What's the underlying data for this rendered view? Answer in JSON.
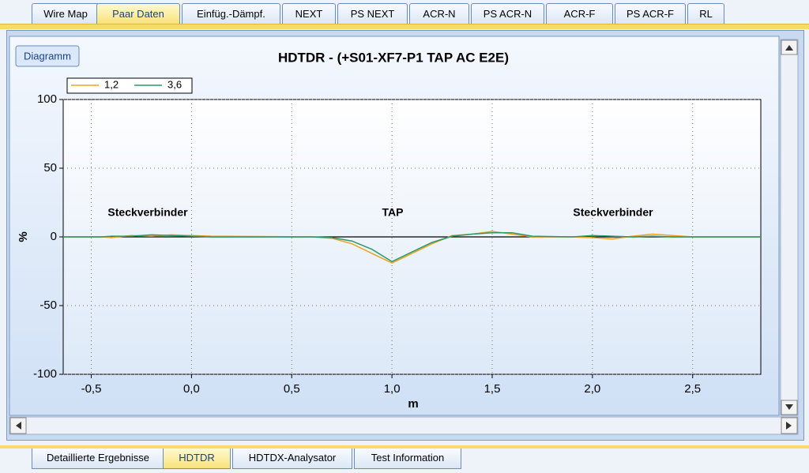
{
  "top_tabs": [
    "Wire Map",
    "Paar Daten",
    "Einfüg.-Dämpf.",
    "NEXT",
    "PS NEXT",
    "ACR-N",
    "PS ACR-N",
    "ACR-F",
    "PS ACR-F",
    "RL"
  ],
  "diagram_button": "Diagramm",
  "chart_data": {
    "type": "line",
    "title": "HDTDR - (+S01-XF7-P1 TAP AC E2E)",
    "x_label": "m",
    "y_label": "%",
    "annotations": [
      "Steckverbinder",
      "TAP",
      "Steckverbinder"
    ],
    "x": [
      -0.64,
      -0.45,
      -0.4,
      -0.3,
      -0.2,
      -0.1,
      0.0,
      0.1,
      0.6,
      0.7,
      0.8,
      0.9,
      1.0,
      1.1,
      1.2,
      1.3,
      1.4,
      1.5,
      1.6,
      1.7,
      1.9,
      2.0,
      2.1,
      2.2,
      2.3,
      2.4,
      2.5,
      2.84
    ],
    "series": [
      {
        "name": "1,2",
        "color": "#f0a020",
        "values": [
          0,
          0,
          -0.5,
          1,
          0.5,
          1.5,
          1,
          0.5,
          0,
          -1,
          -5,
          -12,
          -19,
          -12,
          -5,
          1,
          2,
          4,
          2,
          0,
          0,
          -0.5,
          -1.5,
          0.5,
          2,
          1,
          0,
          0
        ]
      },
      {
        "name": "3,6",
        "color": "#2a9a6a",
        "values": [
          0,
          0,
          0.5,
          0.5,
          1.5,
          1,
          0.5,
          0,
          0,
          -0.5,
          -3,
          -9,
          -18,
          -11,
          -4,
          0.5,
          2,
          3,
          3,
          0.5,
          0,
          1,
          0.5,
          0,
          0.5,
          0,
          0,
          0
        ]
      }
    ],
    "xlim": [
      -0.64,
      2.84
    ],
    "ylim": [
      -100,
      100
    ],
    "xticks": [
      {
        "value": -0.5,
        "label": "-0,5"
      },
      {
        "value": 0,
        "label": "0,0"
      },
      {
        "value": 0.5,
        "label": "0,5"
      },
      {
        "value": 1,
        "label": "1,0"
      },
      {
        "value": 1.5,
        "label": "1,5"
      },
      {
        "value": 2,
        "label": "2,0"
      },
      {
        "value": 2.5,
        "label": "2,5"
      }
    ],
    "yticks": [
      100,
      50,
      0,
      -50,
      -100
    ],
    "grid": true,
    "legend": "top-left"
  },
  "bottom_tabs": [
    "Detaillierte Ergebnisse",
    "HDTDR",
    "HDTDX-Analysator",
    "Test Information"
  ]
}
